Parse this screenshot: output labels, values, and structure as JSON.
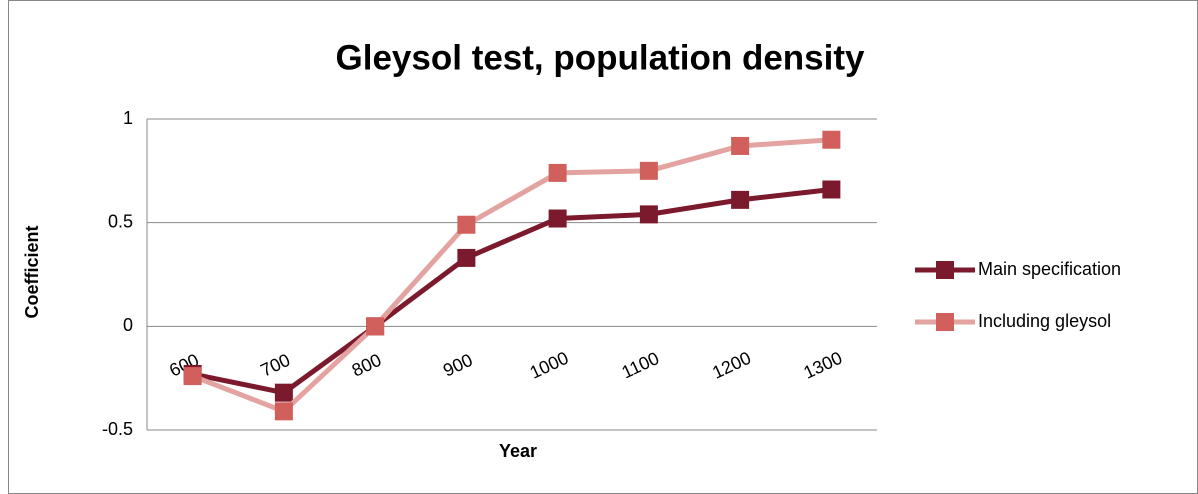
{
  "chart_data": {
    "type": "line",
    "title": "Gleysol test, population density",
    "x_label": "Year",
    "y_label": "Coefficient",
    "categories": [
      "600",
      "700",
      "800",
      "900",
      "1000",
      "1100",
      "1200",
      "1300"
    ],
    "series": [
      {
        "name": "Main specification",
        "color": "#7b1a2c",
        "marker_color": "#7b1a2c",
        "values": [
          -0.23,
          -0.32,
          0,
          0.33,
          0.52,
          0.54,
          0.61,
          0.66
        ]
      },
      {
        "name": "Including gleysol",
        "color": "#e3a3a1",
        "marker_color": "#d15f5b",
        "values": [
          -0.24,
          -0.41,
          0,
          0.49,
          0.74,
          0.75,
          0.87,
          0.9
        ]
      }
    ],
    "ylim": [
      -0.5,
      1
    ],
    "yticks": [
      -0.5,
      0,
      0.5,
      1
    ],
    "grid": true,
    "legend": "right"
  }
}
